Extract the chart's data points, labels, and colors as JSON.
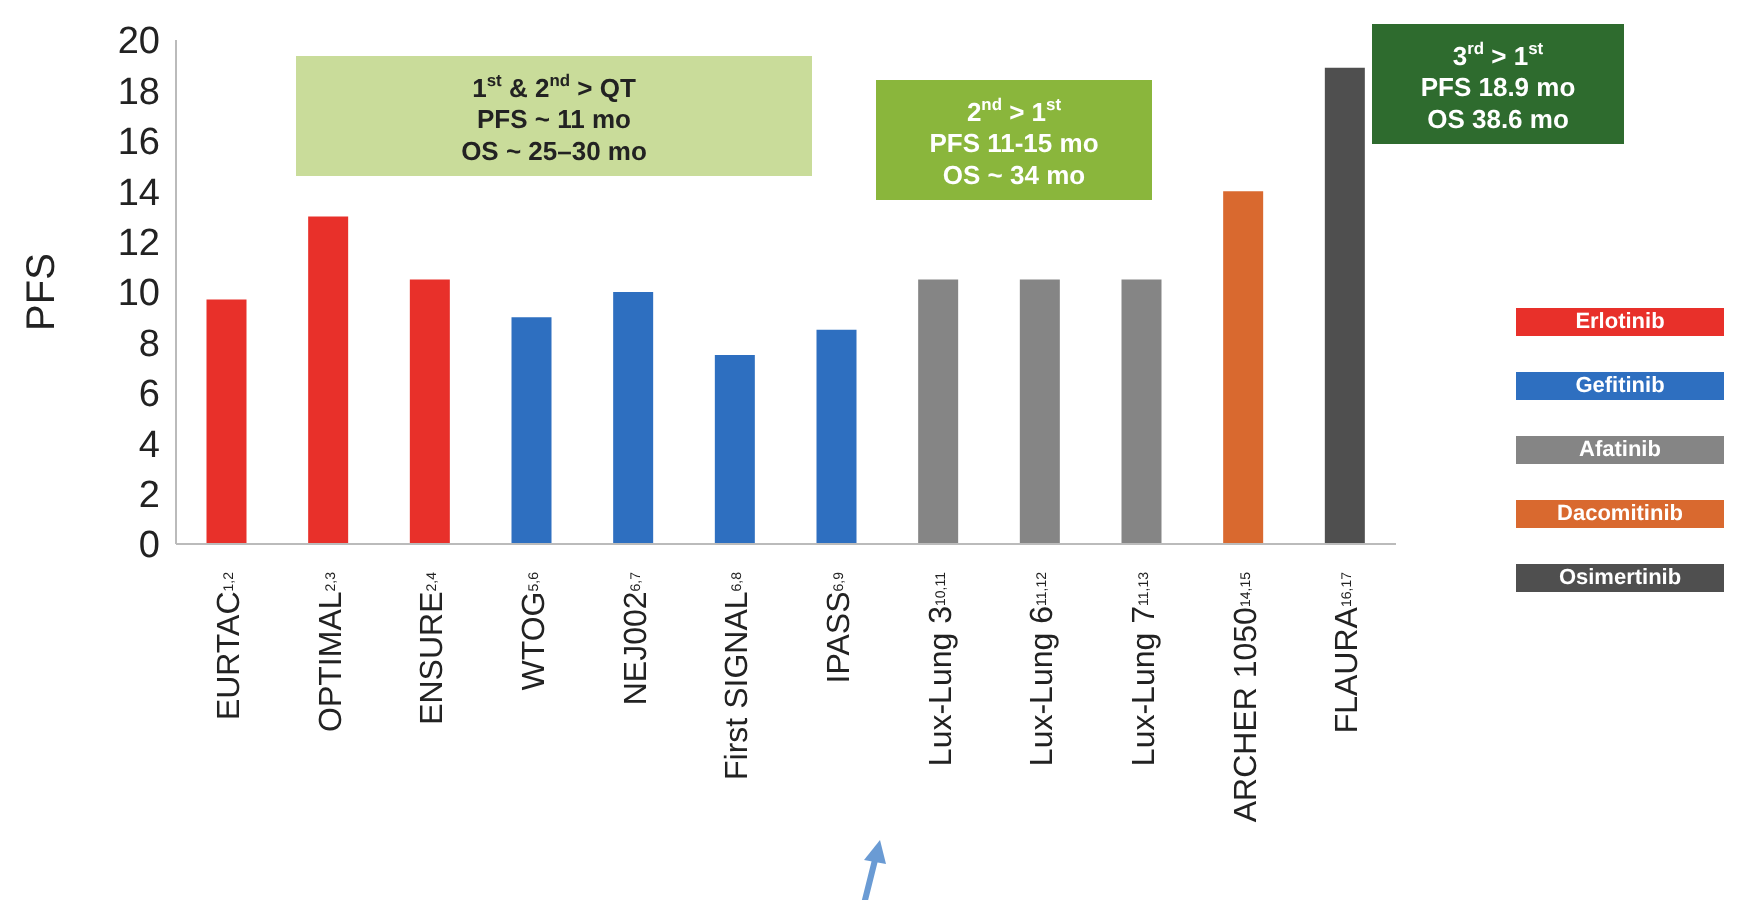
{
  "chart_data": {
    "type": "bar",
    "ylabel": "PFS",
    "categories": [
      "EURTAC$^{1,2}$",
      "OPTIMAL$^{2,3}$",
      "ENSURE$^{2,4}$",
      "WTOG$^{5,6}$",
      "NEJ002$^{6,7}$",
      "First SIGNAL$^{6,8}$",
      "IPASS$^{6,9}$",
      "Lux-Lung 3$^{10,11}$",
      "Lux-Lung 6$^{11,12}$",
      "Lux-Lung 7$^{11,13}$",
      "ARCHER 1050$^{14,15}$",
      "FLAURA$^{16,17}$"
    ],
    "series": [
      {
        "name": "Erlotinib",
        "color": "#e8302a",
        "values": [
          9.7,
          13,
          10.5,
          null,
          null,
          null,
          null,
          null,
          null,
          null,
          null,
          null
        ]
      },
      {
        "name": "Gefitinib",
        "color": "#2e6fc0",
        "values": [
          null,
          null,
          null,
          9,
          10,
          7.5,
          8.5,
          null,
          null,
          null,
          null,
          null
        ]
      },
      {
        "name": "Afatinib",
        "color": "#858585",
        "values": [
          null,
          null,
          null,
          null,
          null,
          null,
          null,
          10.5,
          10.5,
          10.5,
          null,
          null
        ]
      },
      {
        "name": "Dacomitinib",
        "color": "#d9692f",
        "values": [
          null,
          null,
          null,
          null,
          null,
          null,
          null,
          null,
          null,
          null,
          14,
          null
        ]
      },
      {
        "name": "Osimertinib",
        "color": "#4f4f4f",
        "values": [
          null,
          null,
          null,
          null,
          null,
          null,
          null,
          null,
          null,
          null,
          null,
          18.9
        ]
      }
    ],
    "stacked": true,
    "ylim": [
      0,
      20
    ],
    "yticks": [
      0,
      2,
      4,
      6,
      8,
      10,
      12,
      14,
      16,
      18,
      20
    ],
    "grid": false,
    "legend": "right",
    "annotations": [
      "1$^{st}$ & 2$^{nd}$ > QT\nPFS ~ 11 mo\nOS ~ 25–30 mo",
      "2$^{nd}$ > 1$^{st}$\nPFS 11-15 mo\nOS ~ 34 mo",
      "3$^{rd}$ > 1$^{st}$\nPFS 18.9 mo\nOS 38.6 mo"
    ]
  }
}
